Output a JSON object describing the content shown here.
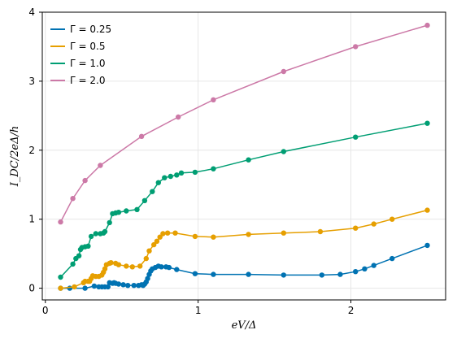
{
  "chart_data": {
    "type": "line",
    "title": "",
    "xlabel": "eV/Δ",
    "ylabel": "I_DC/2eΔ/h",
    "xlim": [
      -0.02,
      2.62
    ],
    "ylim": [
      -0.17,
      4.0
    ],
    "xticks": [
      0,
      1,
      2
    ],
    "yticks": [
      0,
      1,
      2,
      3,
      4
    ],
    "grid": true,
    "legend_position": "top-left",
    "markers": true,
    "series": [
      {
        "name": "Γ = 0.25",
        "color": "#0072B2",
        "markers": true,
        "x": [
          0.1,
          0.16,
          0.26,
          0.32,
          0.35,
          0.37,
          0.39,
          0.41,
          0.42,
          0.44,
          0.45,
          0.46,
          0.48,
          0.51,
          0.54,
          0.58,
          0.61,
          0.63,
          0.64,
          0.65,
          0.66,
          0.67,
          0.68,
          0.69,
          0.7,
          0.72,
          0.74,
          0.76,
          0.79,
          0.81,
          0.86,
          0.98,
          1.1,
          1.33,
          1.56,
          1.81,
          1.93,
          2.03,
          2.09,
          2.15,
          2.27,
          2.5
        ],
        "y": [
          0.0,
          0.0,
          0.0,
          0.03,
          0.02,
          0.02,
          0.02,
          0.02,
          0.08,
          0.07,
          0.08,
          0.07,
          0.06,
          0.05,
          0.04,
          0.04,
          0.04,
          0.05,
          0.04,
          0.06,
          0.09,
          0.14,
          0.2,
          0.25,
          0.28,
          0.3,
          0.32,
          0.31,
          0.31,
          0.3,
          0.27,
          0.21,
          0.2,
          0.2,
          0.19,
          0.19,
          0.2,
          0.24,
          0.28,
          0.33,
          0.43,
          0.62
        ]
      },
      {
        "name": "Γ = 0.5",
        "color": "#E69F00",
        "markers": true,
        "x": [
          0.1,
          0.19,
          0.25,
          0.26,
          0.28,
          0.29,
          0.3,
          0.31,
          0.33,
          0.35,
          0.37,
          0.38,
          0.39,
          0.4,
          0.42,
          0.43,
          0.46,
          0.48,
          0.53,
          0.57,
          0.62,
          0.66,
          0.68,
          0.71,
          0.73,
          0.75,
          0.77,
          0.8,
          0.85,
          0.98,
          1.1,
          1.33,
          1.56,
          1.8,
          2.03,
          2.15,
          2.27,
          2.5
        ],
        "y": [
          0.0,
          0.02,
          0.08,
          0.1,
          0.1,
          0.1,
          0.14,
          0.18,
          0.17,
          0.17,
          0.19,
          0.23,
          0.28,
          0.34,
          0.36,
          0.37,
          0.36,
          0.34,
          0.32,
          0.31,
          0.32,
          0.43,
          0.54,
          0.63,
          0.68,
          0.74,
          0.79,
          0.8,
          0.8,
          0.75,
          0.74,
          0.78,
          0.8,
          0.82,
          0.87,
          0.93,
          1.0,
          1.13
        ]
      },
      {
        "name": "Γ = 1.0",
        "color": "#009E73",
        "markers": true,
        "x": [
          0.1,
          0.18,
          0.2,
          0.22,
          0.23,
          0.24,
          0.26,
          0.28,
          0.3,
          0.33,
          0.36,
          0.38,
          0.39,
          0.42,
          0.44,
          0.46,
          0.48,
          0.53,
          0.6,
          0.65,
          0.7,
          0.74,
          0.78,
          0.82,
          0.86,
          0.89,
          0.98,
          1.1,
          1.33,
          1.56,
          2.03,
          2.5
        ],
        "y": [
          0.16,
          0.35,
          0.43,
          0.47,
          0.56,
          0.59,
          0.6,
          0.61,
          0.75,
          0.79,
          0.79,
          0.8,
          0.82,
          0.95,
          1.08,
          1.09,
          1.1,
          1.12,
          1.14,
          1.27,
          1.4,
          1.53,
          1.6,
          1.62,
          1.64,
          1.67,
          1.68,
          1.73,
          1.86,
          1.98,
          2.19,
          2.39
        ]
      },
      {
        "name": "Γ = 2.0",
        "color": "#CC79A7",
        "markers": true,
        "x": [
          0.1,
          0.18,
          0.26,
          0.36,
          0.63,
          0.87,
          1.1,
          1.56,
          2.03,
          2.5
        ],
        "y": [
          0.96,
          1.3,
          1.56,
          1.78,
          2.2,
          2.48,
          2.73,
          3.14,
          3.5,
          3.81
        ]
      }
    ]
  }
}
